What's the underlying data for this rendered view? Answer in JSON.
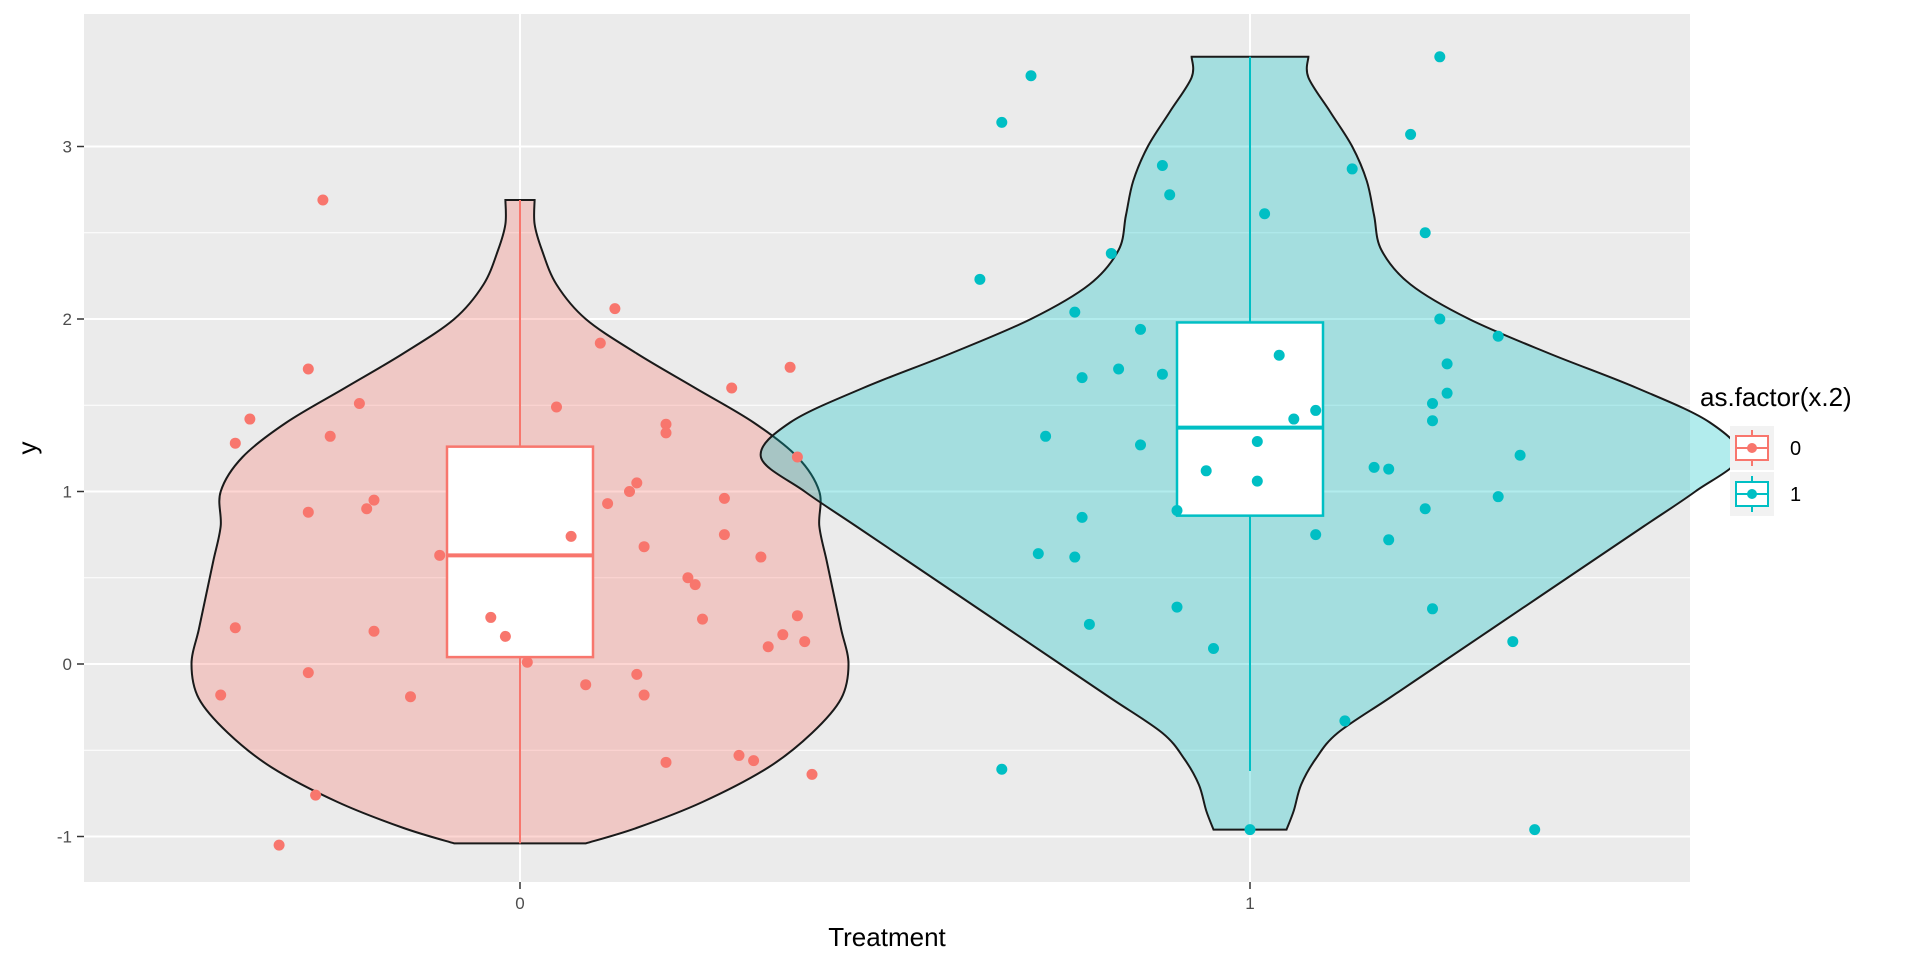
{
  "chart_data": {
    "type": "violin",
    "xlabel": "Treatment",
    "ylabel": "y",
    "categories": [
      "0",
      "1"
    ],
    "ylim": [
      -1.25,
      3.75
    ],
    "y_ticks": [
      -1,
      0,
      1,
      2,
      3
    ],
    "y_tick_labels": [
      "-1",
      "0",
      "1",
      "2",
      "3"
    ],
    "grid": true,
    "legend": {
      "title": "as.factor(x.2)",
      "position": "right",
      "entries": [
        "0",
        "1"
      ]
    },
    "colors": {
      "group0": "#F8766D",
      "group1": "#00BFC4",
      "panel": "#EBEBEB",
      "grid": "#FFFFFF",
      "outline": "#1A1A1A"
    },
    "series": [
      {
        "name": "0",
        "violin": [
          [
            -1.04,
            0.09
          ],
          [
            -0.95,
            0.16
          ],
          [
            -0.8,
            0.25
          ],
          [
            -0.6,
            0.34
          ],
          [
            -0.4,
            0.4
          ],
          [
            -0.2,
            0.44
          ],
          [
            0.0,
            0.45
          ],
          [
            0.2,
            0.44
          ],
          [
            0.4,
            0.43
          ],
          [
            0.6,
            0.42
          ],
          [
            0.8,
            0.41
          ],
          [
            1.0,
            0.41
          ],
          [
            1.2,
            0.38
          ],
          [
            1.4,
            0.32
          ],
          [
            1.6,
            0.24
          ],
          [
            1.8,
            0.16
          ],
          [
            2.0,
            0.09
          ],
          [
            2.2,
            0.05
          ],
          [
            2.4,
            0.03
          ],
          [
            2.55,
            0.02
          ],
          [
            2.69,
            0.02
          ]
        ],
        "box": {
          "ymin": -1.04,
          "q1": 0.04,
          "median": 0.63,
          "q3": 1.26,
          "ymax": 2.69
        },
        "points": [
          [
            -0.27,
            2.69
          ],
          [
            0.13,
            2.06
          ],
          [
            0.11,
            1.86
          ],
          [
            -0.29,
            1.71
          ],
          [
            0.37,
            1.72
          ],
          [
            -0.22,
            1.51
          ],
          [
            -0.37,
            1.42
          ],
          [
            0.05,
            1.49
          ],
          [
            0.29,
            1.6
          ],
          [
            -0.39,
            1.28
          ],
          [
            -0.26,
            1.32
          ],
          [
            0.2,
            1.39
          ],
          [
            0.2,
            1.34
          ],
          [
            0.38,
            1.2
          ],
          [
            0.16,
            1.05
          ],
          [
            0.15,
            1.0
          ],
          [
            -0.2,
            0.95
          ],
          [
            -0.21,
            0.9
          ],
          [
            -0.29,
            0.88
          ],
          [
            0.12,
            0.93
          ],
          [
            0.28,
            0.96
          ],
          [
            0.28,
            0.75
          ],
          [
            0.07,
            0.74
          ],
          [
            0.17,
            0.68
          ],
          [
            -0.11,
            0.63
          ],
          [
            0.33,
            0.62
          ],
          [
            0.23,
            0.5
          ],
          [
            0.24,
            0.46
          ],
          [
            -0.04,
            0.27
          ],
          [
            0.25,
            0.26
          ],
          [
            0.38,
            0.28
          ],
          [
            0.36,
            0.17
          ],
          [
            -0.02,
            0.16
          ],
          [
            0.39,
            0.13
          ],
          [
            0.34,
            0.1
          ],
          [
            -0.39,
            0.21
          ],
          [
            -0.2,
            0.19
          ],
          [
            0.01,
            0.01
          ],
          [
            -0.29,
            -0.05
          ],
          [
            0.16,
            -0.06
          ],
          [
            0.09,
            -0.12
          ],
          [
            -0.15,
            -0.19
          ],
          [
            0.17,
            -0.18
          ],
          [
            -0.41,
            -0.18
          ],
          [
            0.3,
            -0.53
          ],
          [
            0.32,
            -0.56
          ],
          [
            0.2,
            -0.57
          ],
          [
            0.4,
            -0.64
          ],
          [
            -0.28,
            -0.76
          ],
          [
            -0.33,
            -1.05
          ]
        ]
      },
      {
        "name": "1",
        "violin": [
          [
            -0.96,
            0.05
          ],
          [
            -0.85,
            0.06
          ],
          [
            -0.7,
            0.07
          ],
          [
            -0.55,
            0.09
          ],
          [
            -0.4,
            0.12
          ],
          [
            -0.2,
            0.19
          ],
          [
            0.0,
            0.26
          ],
          [
            0.2,
            0.33
          ],
          [
            0.4,
            0.4
          ],
          [
            0.6,
            0.47
          ],
          [
            0.8,
            0.54
          ],
          [
            1.0,
            0.61
          ],
          [
            1.2,
            0.67
          ],
          [
            1.4,
            0.63
          ],
          [
            1.6,
            0.53
          ],
          [
            1.8,
            0.41
          ],
          [
            2.0,
            0.3
          ],
          [
            2.2,
            0.22
          ],
          [
            2.4,
            0.18
          ],
          [
            2.6,
            0.17
          ],
          [
            2.8,
            0.16
          ],
          [
            3.0,
            0.14
          ],
          [
            3.2,
            0.11
          ],
          [
            3.4,
            0.08
          ],
          [
            3.52,
            0.08
          ]
        ],
        "box": {
          "ymin": -0.62,
          "q1": 0.86,
          "median": 1.37,
          "q3": 1.98,
          "ymax": 3.52
        },
        "points": [
          [
            0.26,
            3.52
          ],
          [
            -0.3,
            3.41
          ],
          [
            -0.34,
            3.14
          ],
          [
            0.22,
            3.07
          ],
          [
            0.14,
            2.87
          ],
          [
            -0.12,
            2.89
          ],
          [
            -0.11,
            2.72
          ],
          [
            0.02,
            2.61
          ],
          [
            0.24,
            2.5
          ],
          [
            -0.37,
            2.23
          ],
          [
            -0.19,
            2.38
          ],
          [
            -0.24,
            2.04
          ],
          [
            0.26,
            2.0
          ],
          [
            -0.15,
            1.94
          ],
          [
            0.34,
            1.9
          ],
          [
            0.04,
            1.79
          ],
          [
            0.27,
            1.74
          ],
          [
            -0.18,
            1.71
          ],
          [
            -0.12,
            1.68
          ],
          [
            -0.23,
            1.66
          ],
          [
            0.27,
            1.57
          ],
          [
            0.25,
            1.51
          ],
          [
            0.09,
            1.47
          ],
          [
            0.06,
            1.42
          ],
          [
            0.25,
            1.41
          ],
          [
            -0.28,
            1.32
          ],
          [
            0.01,
            1.29
          ],
          [
            -0.15,
            1.27
          ],
          [
            0.37,
            1.21
          ],
          [
            0.17,
            1.14
          ],
          [
            0.19,
            1.13
          ],
          [
            -0.06,
            1.12
          ],
          [
            0.01,
            1.06
          ],
          [
            0.34,
            0.97
          ],
          [
            0.24,
            0.9
          ],
          [
            -0.1,
            0.89
          ],
          [
            -0.23,
            0.85
          ],
          [
            0.09,
            0.75
          ],
          [
            0.19,
            0.72
          ],
          [
            -0.29,
            0.64
          ],
          [
            -0.24,
            0.62
          ],
          [
            -0.1,
            0.33
          ],
          [
            0.25,
            0.32
          ],
          [
            -0.22,
            0.23
          ],
          [
            0.36,
            0.13
          ],
          [
            -0.05,
            0.09
          ],
          [
            0.13,
            -0.33
          ],
          [
            -0.34,
            -0.61
          ],
          [
            0.0,
            -0.96
          ],
          [
            0.39,
            -0.96
          ]
        ]
      }
    ]
  }
}
